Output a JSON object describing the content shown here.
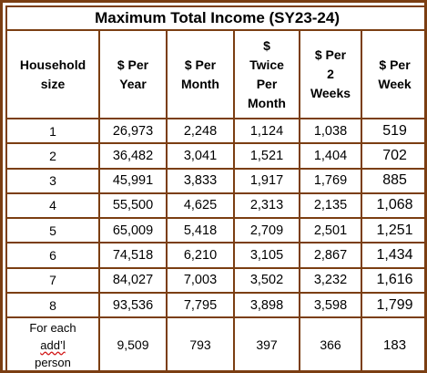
{
  "title": "Maximum Total Income (SY23-24)",
  "columns": [
    [
      "Household",
      "size"
    ],
    [
      "$ Per",
      "Year"
    ],
    [
      "$ Per",
      "Month"
    ],
    [
      "$",
      "Twice",
      "Per",
      "Month"
    ],
    [
      "$ Per",
      "2",
      "Weeks"
    ],
    [
      "$ Per",
      "Week"
    ]
  ],
  "rows": [
    [
      "1",
      "26,973",
      "2,248",
      "1,124",
      "1,038",
      "519"
    ],
    [
      "2",
      "36,482",
      "3,041",
      "1,521",
      "1,404",
      "702"
    ],
    [
      "3",
      "45,991",
      "3,833",
      "1,917",
      "1,769",
      "885"
    ],
    [
      "4",
      "55,500",
      "4,625",
      "2,313",
      "2,135",
      "1,068"
    ],
    [
      "5",
      "65,009",
      "5,418",
      "2,709",
      "2,501",
      "1,251"
    ],
    [
      "6",
      "74,518",
      "6,210",
      "3,105",
      "2,867",
      "1,434"
    ],
    [
      "7",
      "84,027",
      "7,003",
      "3,502",
      "3,232",
      "1,616"
    ],
    [
      "8",
      "93,536",
      "7,795",
      "3,898",
      "3,598",
      "1,799"
    ]
  ],
  "additional": {
    "label": [
      "For each",
      "add’l",
      "person"
    ],
    "values": [
      "9,509",
      "793",
      "397",
      "366",
      "183"
    ]
  },
  "colors": {
    "border": "#7b3e12",
    "spellcheck": "#d21c1c"
  }
}
